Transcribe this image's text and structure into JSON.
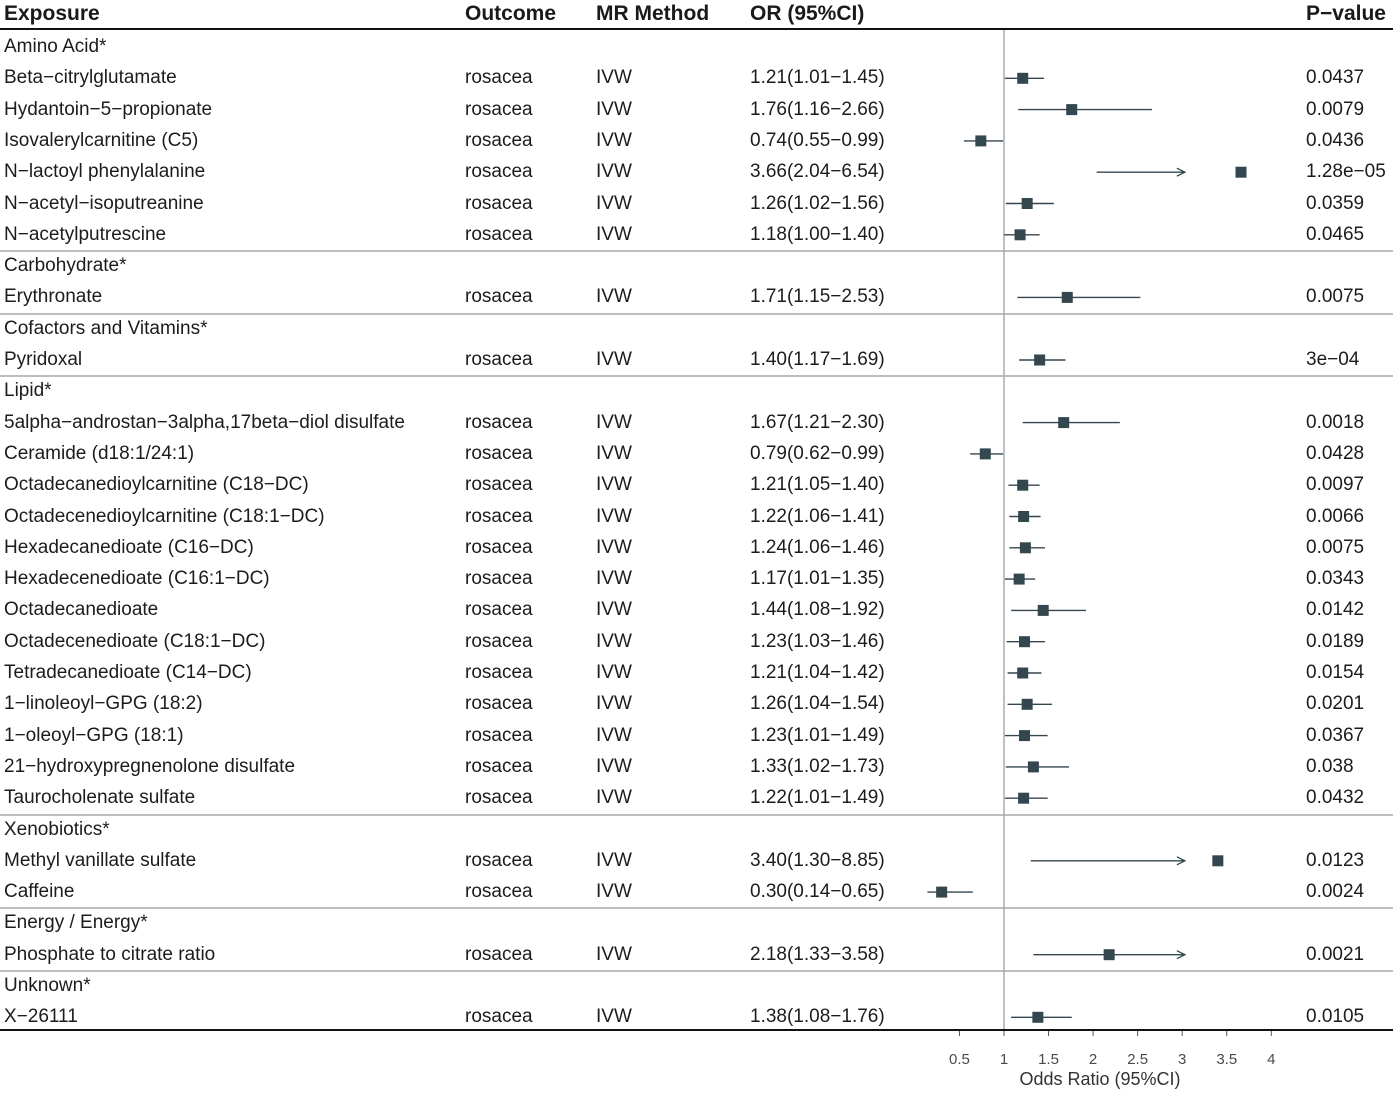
{
  "headers": {
    "exposure": "Exposure",
    "outcome": "Outcome",
    "method": "MR Method",
    "or": "OR (95%CI)",
    "pvalue": "P−value"
  },
  "chart_data": {
    "type": "forest",
    "xlabel": "Odds Ratio (95%CI)",
    "xlim": [
      0.5,
      4
    ],
    "xticks": [
      "0.5",
      "1",
      "1.5",
      "2",
      "2.5",
      "3",
      "3.5",
      "4"
    ],
    "reference_line": 1,
    "marker_color": "#34474f",
    "rows": [
      {
        "kind": "group",
        "label": "Amino Acid*"
      },
      {
        "kind": "item",
        "exposure": "Beta−citrylglutamate",
        "outcome": "rosacea",
        "method": "IVW",
        "or_text": "1.21(1.01−1.45)",
        "or": 1.21,
        "lo": 1.01,
        "hi": 1.45,
        "p": "0.0437"
      },
      {
        "kind": "item",
        "exposure": "Hydantoin−5−propionate",
        "outcome": "rosacea",
        "method": "IVW",
        "or_text": "1.76(1.16−2.66)",
        "or": 1.76,
        "lo": 1.16,
        "hi": 2.66,
        "p": "0.0079"
      },
      {
        "kind": "item",
        "exposure": "Isovalerylcarnitine (C5)",
        "outcome": "rosacea",
        "method": "IVW",
        "or_text": "0.74(0.55−0.99)",
        "or": 0.74,
        "lo": 0.55,
        "hi": 0.99,
        "p": "0.0436"
      },
      {
        "kind": "item",
        "exposure": "N−lactoyl phenylalanine",
        "outcome": "rosacea",
        "method": "IVW",
        "or_text": "3.66(2.04−6.54)",
        "or": 3.66,
        "lo": 2.04,
        "hi": 6.54,
        "p": "1.28e−05"
      },
      {
        "kind": "item",
        "exposure": "N−acetyl−isoputreanine",
        "outcome": "rosacea",
        "method": "IVW",
        "or_text": "1.26(1.02−1.56)",
        "or": 1.26,
        "lo": 1.02,
        "hi": 1.56,
        "p": "0.0359"
      },
      {
        "kind": "item",
        "exposure": "N−acetylputrescine",
        "outcome": "rosacea",
        "method": "IVW",
        "or_text": "1.18(1.00−1.40)",
        "or": 1.18,
        "lo": 1.0,
        "hi": 1.4,
        "p": "0.0465"
      },
      {
        "kind": "group",
        "label": "Carbohydrate*"
      },
      {
        "kind": "item",
        "exposure": "Erythronate",
        "outcome": "rosacea",
        "method": "IVW",
        "or_text": "1.71(1.15−2.53)",
        "or": 1.71,
        "lo": 1.15,
        "hi": 2.53,
        "p": "0.0075"
      },
      {
        "kind": "group",
        "label": "Cofactors and Vitamins*"
      },
      {
        "kind": "item",
        "exposure": "Pyridoxal",
        "outcome": "rosacea",
        "method": "IVW",
        "or_text": "1.40(1.17−1.69)",
        "or": 1.4,
        "lo": 1.17,
        "hi": 1.69,
        "p": "3e−04"
      },
      {
        "kind": "group",
        "label": "Lipid*"
      },
      {
        "kind": "item",
        "exposure": "5alpha−androstan−3alpha,17beta−diol disulfate",
        "outcome": "rosacea",
        "method": "IVW",
        "or_text": "1.67(1.21−2.30)",
        "or": 1.67,
        "lo": 1.21,
        "hi": 2.3,
        "p": "0.0018"
      },
      {
        "kind": "item",
        "exposure": "Ceramide (d18:1/24:1)",
        "outcome": "rosacea",
        "method": "IVW",
        "or_text": "0.79(0.62−0.99)",
        "or": 0.79,
        "lo": 0.62,
        "hi": 0.99,
        "p": "0.0428"
      },
      {
        "kind": "item",
        "exposure": "Octadecanedioylcarnitine (C18−DC)",
        "outcome": "rosacea",
        "method": "IVW",
        "or_text": "1.21(1.05−1.40)",
        "or": 1.21,
        "lo": 1.05,
        "hi": 1.4,
        "p": "0.0097"
      },
      {
        "kind": "item",
        "exposure": "Octadecenedioylcarnitine (C18:1−DC)",
        "outcome": "rosacea",
        "method": "IVW",
        "or_text": "1.22(1.06−1.41)",
        "or": 1.22,
        "lo": 1.06,
        "hi": 1.41,
        "p": "0.0066"
      },
      {
        "kind": "item",
        "exposure": "Hexadecanedioate (C16−DC)",
        "outcome": "rosacea",
        "method": "IVW",
        "or_text": "1.24(1.06−1.46)",
        "or": 1.24,
        "lo": 1.06,
        "hi": 1.46,
        "p": "0.0075"
      },
      {
        "kind": "item",
        "exposure": "Hexadecenedioate (C16:1−DC)",
        "outcome": "rosacea",
        "method": "IVW",
        "or_text": "1.17(1.01−1.35)",
        "or": 1.17,
        "lo": 1.01,
        "hi": 1.35,
        "p": "0.0343"
      },
      {
        "kind": "item",
        "exposure": "Octadecanedioate",
        "outcome": "rosacea",
        "method": "IVW",
        "or_text": "1.44(1.08−1.92)",
        "or": 1.44,
        "lo": 1.08,
        "hi": 1.92,
        "p": "0.0142"
      },
      {
        "kind": "item",
        "exposure": "Octadecenedioate (C18:1−DC)",
        "outcome": "rosacea",
        "method": "IVW",
        "or_text": "1.23(1.03−1.46)",
        "or": 1.23,
        "lo": 1.03,
        "hi": 1.46,
        "p": "0.0189"
      },
      {
        "kind": "item",
        "exposure": "Tetradecanedioate (C14−DC)",
        "outcome": "rosacea",
        "method": "IVW",
        "or_text": "1.21(1.04−1.42)",
        "or": 1.21,
        "lo": 1.04,
        "hi": 1.42,
        "p": "0.0154"
      },
      {
        "kind": "item",
        "exposure": "1−linoleoyl−GPG (18:2)",
        "outcome": "rosacea",
        "method": "IVW",
        "or_text": "1.26(1.04−1.54)",
        "or": 1.26,
        "lo": 1.04,
        "hi": 1.54,
        "p": "0.0201"
      },
      {
        "kind": "item",
        "exposure": "1−oleoyl−GPG (18:1)",
        "outcome": "rosacea",
        "method": "IVW",
        "or_text": "1.23(1.01−1.49)",
        "or": 1.23,
        "lo": 1.01,
        "hi": 1.49,
        "p": "0.0367"
      },
      {
        "kind": "item",
        "exposure": "21−hydroxypregnenolone disulfate",
        "outcome": "rosacea",
        "method": "IVW",
        "or_text": "1.33(1.02−1.73)",
        "or": 1.33,
        "lo": 1.02,
        "hi": 1.73,
        "p": "0.038"
      },
      {
        "kind": "item",
        "exposure": "Taurocholenate sulfate",
        "outcome": "rosacea",
        "method": "IVW",
        "or_text": "1.22(1.01−1.49)",
        "or": 1.22,
        "lo": 1.01,
        "hi": 1.49,
        "p": "0.0432"
      },
      {
        "kind": "group",
        "label": "Xenobiotics*"
      },
      {
        "kind": "item",
        "exposure": "Methyl vanillate sulfate",
        "outcome": "rosacea",
        "method": "IVW",
        "or_text": "3.40(1.30−8.85)",
        "or": 3.4,
        "lo": 1.3,
        "hi": 8.85,
        "p": "0.0123"
      },
      {
        "kind": "item",
        "exposure": "Caffeine",
        "outcome": "rosacea",
        "method": "IVW",
        "or_text": "0.30(0.14−0.65)",
        "or": 0.3,
        "lo": 0.14,
        "hi": 0.65,
        "p": "0.0024"
      },
      {
        "kind": "group",
        "label": "Energy / Energy*"
      },
      {
        "kind": "item",
        "exposure": "Phosphate to citrate ratio",
        "outcome": "rosacea",
        "method": "IVW",
        "or_text": "2.18(1.33−3.58)",
        "or": 2.18,
        "lo": 1.33,
        "hi": 3.58,
        "p": "0.0021"
      },
      {
        "kind": "group",
        "label": "Unknown*"
      },
      {
        "kind": "item",
        "exposure": "X−26111",
        "outcome": "rosacea",
        "method": "IVW",
        "or_text": "1.38(1.08−1.76)",
        "or": 1.38,
        "lo": 1.08,
        "hi": 1.76,
        "p": "0.0105"
      }
    ]
  }
}
